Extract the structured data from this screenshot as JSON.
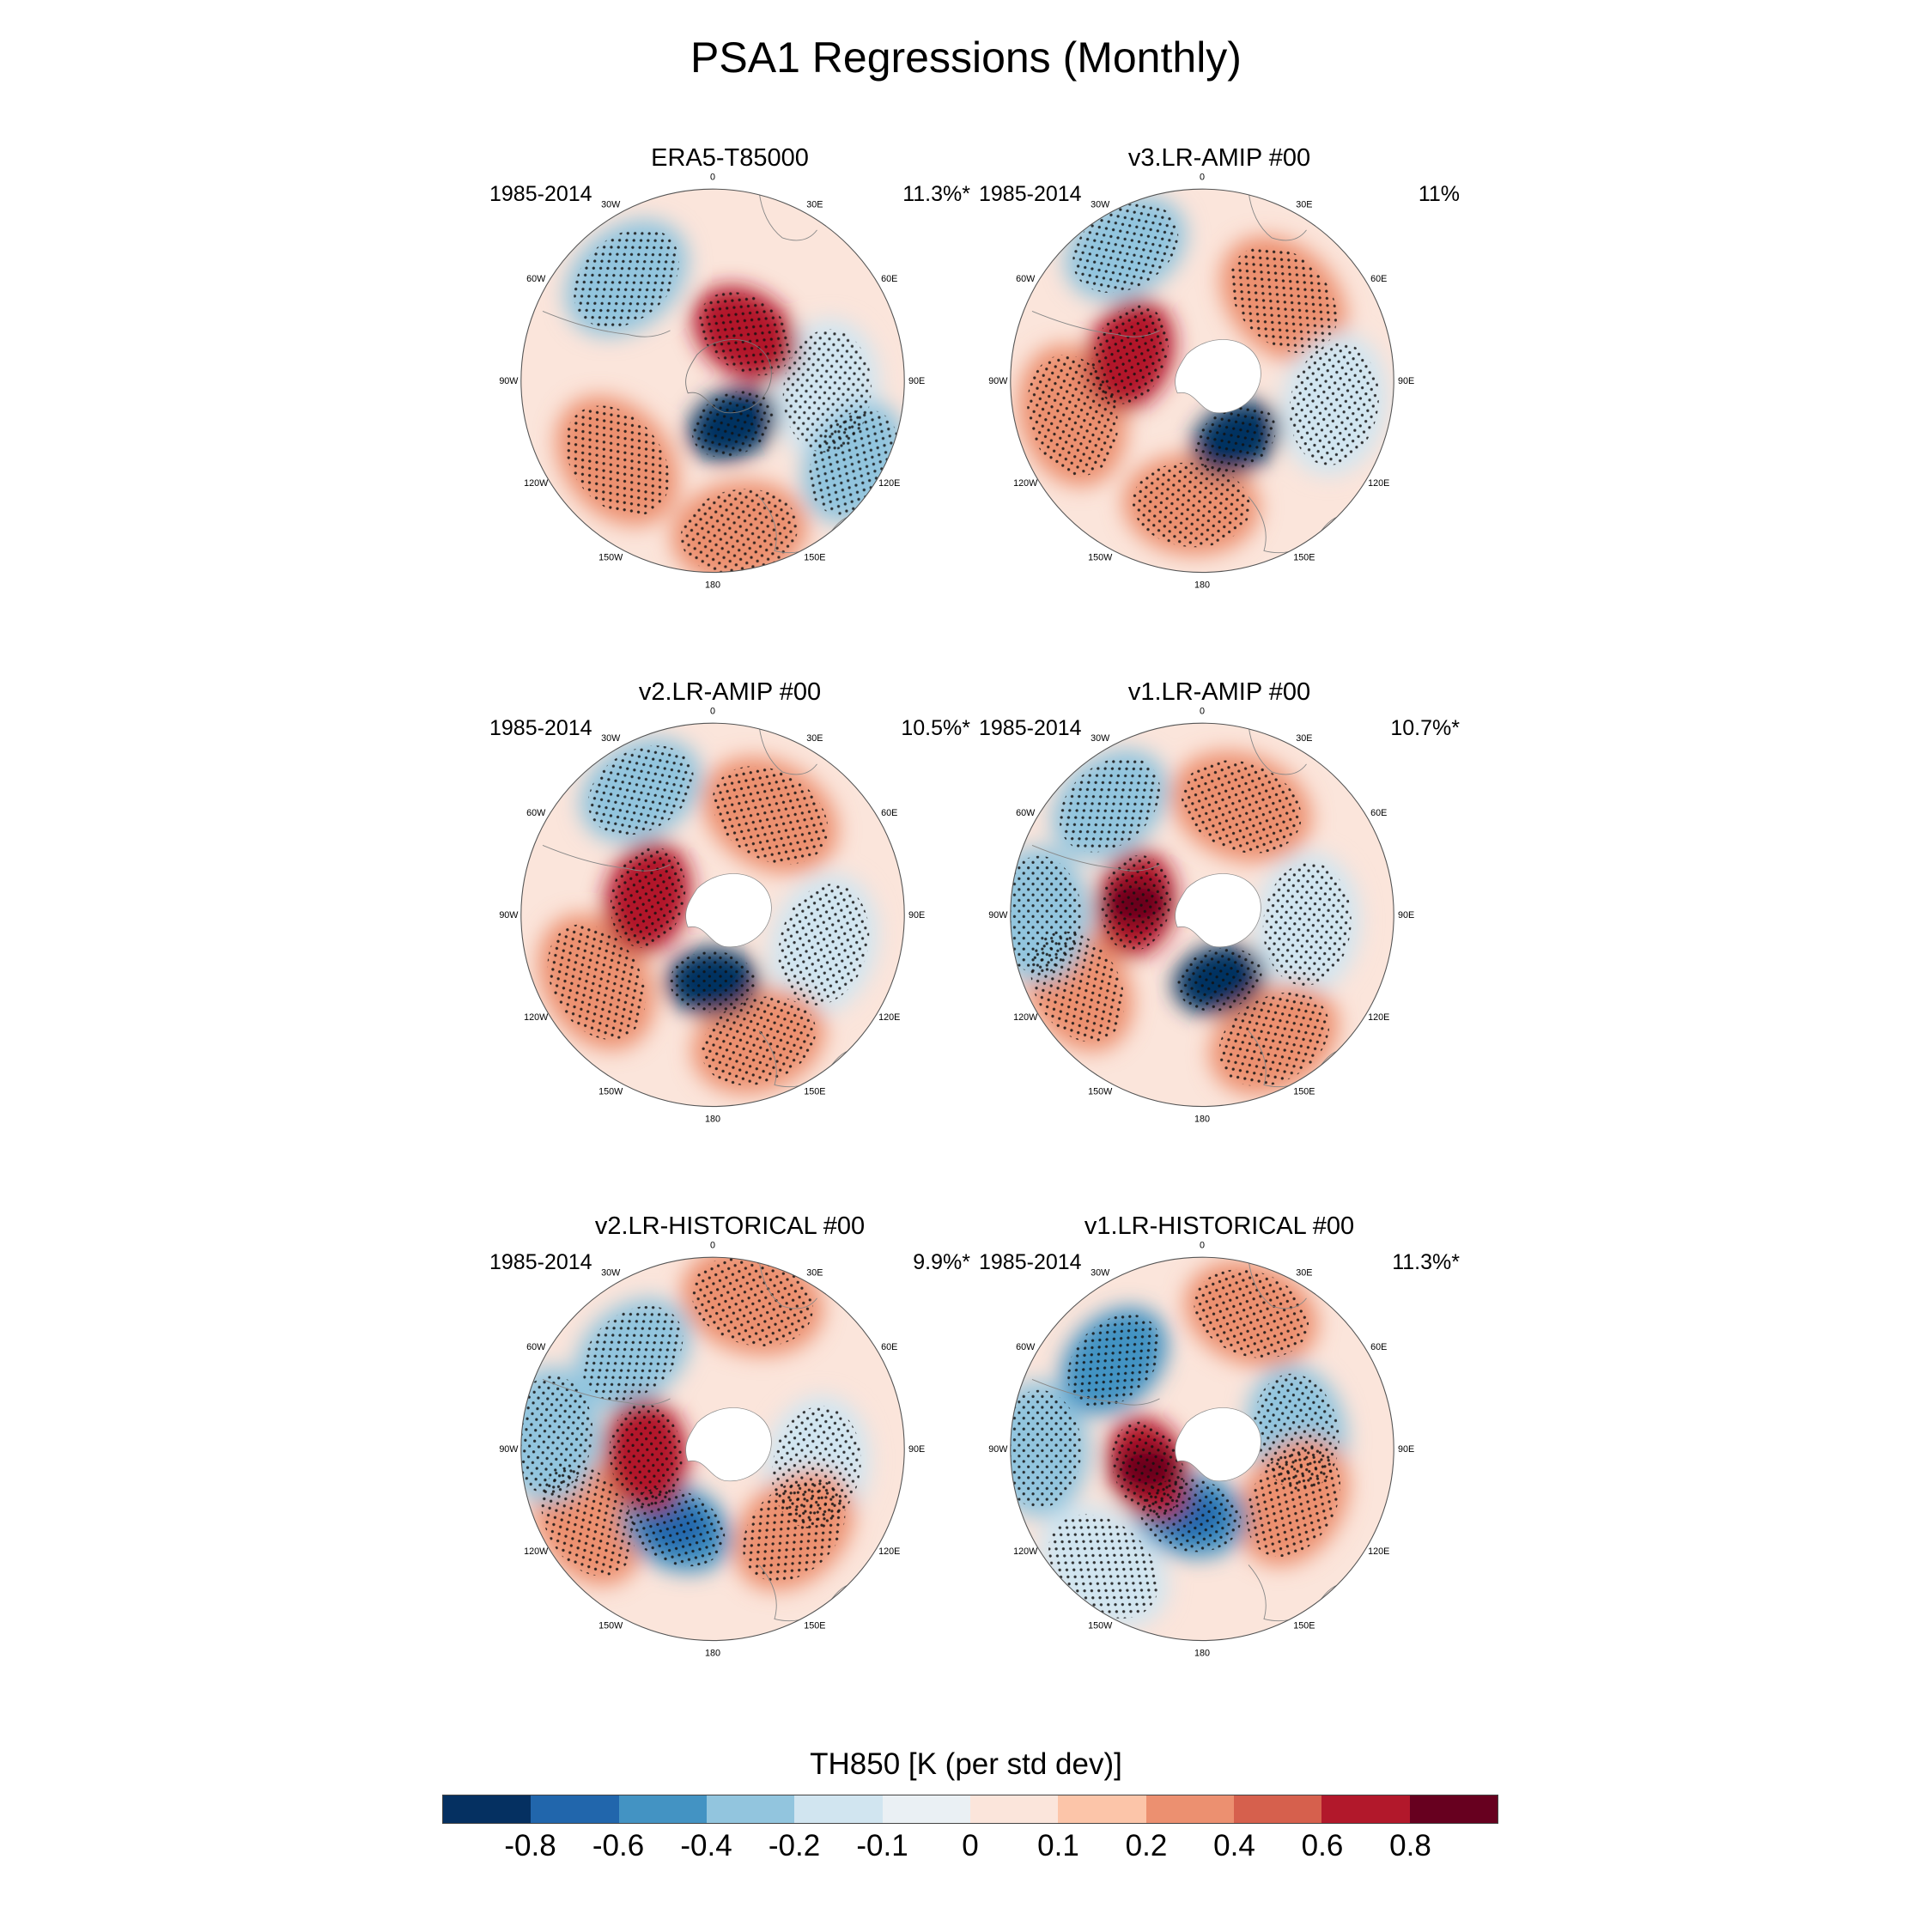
{
  "title": "PSA1 Regressions (Monthly)",
  "colorbar": {
    "label": "TH850 [K (per std dev)]",
    "colors": [
      "#053061",
      "#2166ac",
      "#4393c3",
      "#92c5de",
      "#d1e5f0",
      "#eaf0f4",
      "#fbe5db",
      "#fcc5a9",
      "#ec9070",
      "#d6604d",
      "#b2182b",
      "#67001f"
    ],
    "ticks": [
      "-0.8",
      "-0.6",
      "-0.4",
      "-0.2",
      "-0.1",
      "0",
      "0.1",
      "0.2",
      "0.4",
      "0.6",
      "0.8"
    ]
  },
  "lon_labels": [
    "0",
    "30E",
    "60E",
    "90E",
    "120E",
    "150E",
    "180",
    "150W",
    "120W",
    "90W",
    "60W",
    "30W"
  ],
  "chart_data": {
    "type": "heatmap",
    "title": "PSA1 Regressions (Monthly)",
    "variable": "TH850 [K (per std dev)]",
    "contour_levels": [
      -0.8,
      -0.6,
      -0.4,
      -0.2,
      -0.1,
      0,
      0.1,
      0.2,
      0.4,
      0.6,
      0.8
    ],
    "panels": [
      {
        "name": "ERA5-T85000",
        "years": "1985-2014",
        "variance": "11.3%*",
        "features": [
          {
            "lon": 155,
            "r": 0.25,
            "value": -0.9
          },
          {
            "lon": 120,
            "r": 0.85,
            "value": -0.4
          },
          {
            "lon": 35,
            "r": 0.3,
            "value": 0.6
          },
          {
            "lon": 170,
            "r": 0.8,
            "value": 0.3
          },
          {
            "lon": 320,
            "r": 0.7,
            "value": -0.3
          },
          {
            "lon": 95,
            "r": 0.6,
            "value": -0.2
          },
          {
            "lon": 230,
            "r": 0.65,
            "value": 0.2
          }
        ]
      },
      {
        "name": "v3.LR-AMIP  #00",
        "years": "1985-2014",
        "variance": "11%",
        "features": [
          {
            "lon": 150,
            "r": 0.35,
            "value": -0.9
          },
          {
            "lon": 290,
            "r": 0.4,
            "value": 0.6
          },
          {
            "lon": 330,
            "r": 0.8,
            "value": -0.4
          },
          {
            "lon": 45,
            "r": 0.6,
            "value": 0.2
          },
          {
            "lon": 100,
            "r": 0.7,
            "value": -0.2
          },
          {
            "lon": 185,
            "r": 0.65,
            "value": 0.3
          },
          {
            "lon": 255,
            "r": 0.7,
            "value": 0.2
          }
        ]
      },
      {
        "name": "v2.LR-AMIP  #00",
        "years": "1985-2014",
        "variance": "10.5%*",
        "features": [
          {
            "lon": 180,
            "r": 0.35,
            "value": -0.9
          },
          {
            "lon": 285,
            "r": 0.35,
            "value": 0.6
          },
          {
            "lon": 330,
            "r": 0.75,
            "value": -0.4
          },
          {
            "lon": 30,
            "r": 0.6,
            "value": 0.2
          },
          {
            "lon": 105,
            "r": 0.6,
            "value": -0.2
          },
          {
            "lon": 160,
            "r": 0.7,
            "value": 0.3
          },
          {
            "lon": 240,
            "r": 0.7,
            "value": 0.2
          }
        ]
      },
      {
        "name": "v1.LR-AMIP  #00",
        "years": "1985-2014",
        "variance": "10.7%*",
        "features": [
          {
            "lon": 165,
            "r": 0.35,
            "value": -0.9
          },
          {
            "lon": 280,
            "r": 0.35,
            "value": 0.7
          },
          {
            "lon": 320,
            "r": 0.75,
            "value": -0.4
          },
          {
            "lon": 20,
            "r": 0.6,
            "value": 0.2
          },
          {
            "lon": 95,
            "r": 0.55,
            "value": -0.2
          },
          {
            "lon": 150,
            "r": 0.75,
            "value": 0.3
          },
          {
            "lon": 240,
            "r": 0.75,
            "value": 0.3
          },
          {
            "lon": 270,
            "r": 0.85,
            "value": -0.3
          }
        ]
      },
      {
        "name": "v2.LR-HISTORICAL  #00",
        "years": "1985-2014",
        "variance": "9.9%*",
        "features": [
          {
            "lon": 205,
            "r": 0.45,
            "value": -0.6
          },
          {
            "lon": 265,
            "r": 0.35,
            "value": 0.6
          },
          {
            "lon": 320,
            "r": 0.65,
            "value": -0.4
          },
          {
            "lon": 15,
            "r": 0.8,
            "value": 0.2
          },
          {
            "lon": 100,
            "r": 0.55,
            "value": -0.2
          },
          {
            "lon": 135,
            "r": 0.6,
            "value": 0.3
          },
          {
            "lon": 240,
            "r": 0.75,
            "value": 0.3
          },
          {
            "lon": 275,
            "r": 0.85,
            "value": -0.3
          }
        ]
      },
      {
        "name": "v1.LR-HISTORICAL  #00",
        "years": "1985-2014",
        "variance": "11.3%*",
        "features": [
          {
            "lon": 190,
            "r": 0.35,
            "value": -0.6
          },
          {
            "lon": 250,
            "r": 0.3,
            "value": 0.7
          },
          {
            "lon": 315,
            "r": 0.65,
            "value": -0.5
          },
          {
            "lon": 20,
            "r": 0.75,
            "value": 0.3
          },
          {
            "lon": 80,
            "r": 0.5,
            "value": -0.3
          },
          {
            "lon": 120,
            "r": 0.55,
            "value": 0.3
          },
          {
            "lon": 220,
            "r": 0.8,
            "value": -0.2
          },
          {
            "lon": 270,
            "r": 0.85,
            "value": -0.3
          }
        ]
      }
    ]
  }
}
